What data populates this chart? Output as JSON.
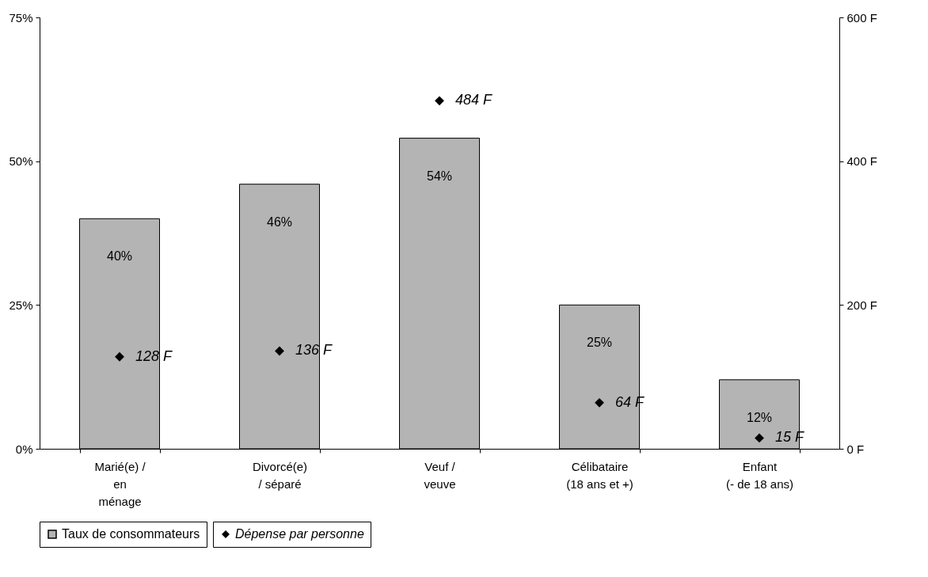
{
  "chart_data": {
    "type": "bar",
    "categories": [
      "Marié(e) /\nen\nménage",
      "Divorcé(e)\n/ séparé",
      "Veuf /\nveuve",
      "Célibataire\n(18 ans et +)",
      "Enfant\n(- de 18 ans)"
    ],
    "series": [
      {
        "name": "Taux de consommateurs",
        "color": "#b4b4b4",
        "values": [
          40,
          46,
          54,
          25,
          12
        ],
        "value_labels": [
          "40%",
          "46%",
          "54%",
          "25%",
          "12%"
        ]
      },
      {
        "name": "Dépense par personne",
        "type": "scatter",
        "axis": "y2",
        "color": "#000000",
        "values": [
          128,
          136,
          484,
          64,
          15
        ],
        "value_labels": [
          "128 F",
          "136 F",
          "484 F",
          "64 F",
          "15 F"
        ]
      }
    ],
    "ylim": [
      0,
      75
    ],
    "yticks": [
      {
        "value": 0,
        "label": "0%"
      },
      {
        "value": 25,
        "label": "25%"
      },
      {
        "value": 50,
        "label": "50%"
      },
      {
        "value": 75,
        "label": "75%"
      }
    ],
    "y2lim": [
      0,
      600
    ],
    "y2ticks": [
      {
        "value": 0,
        "label": "0 F"
      },
      {
        "value": 200,
        "label": "200 F"
      },
      {
        "value": 400,
        "label": "400 F"
      },
      {
        "value": 600,
        "label": "600 F"
      }
    ],
    "legend": "bottom",
    "marker": "diamond"
  }
}
